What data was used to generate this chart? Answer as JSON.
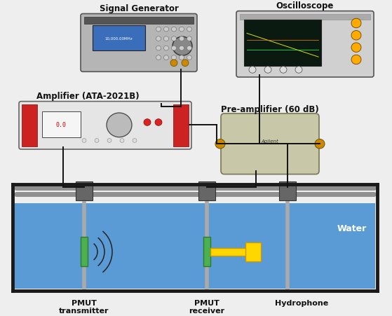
{
  "bg_color": "#f0f0f0",
  "water_color": "#5b9bd5",
  "tank_wall": "#1a1a1a",
  "rail_color": "#8a8a8a",
  "clamp_color": "#606060",
  "rod_color": "#aaaaaa",
  "wire_color": "#111111",
  "figure_bg": "#eeeeee",
  "labels": {
    "signal_gen": "Signal Generator",
    "oscilloscope": "Oscilloscope",
    "amplifier": "Amplifier (ATA-2021B)",
    "preamp": "Pre-amplifier (60 dB)",
    "pmut_tx": "PMUT\ntransmitter",
    "pmut_rx": "PMUT\nreceiver",
    "hydrophone": "Hydrophone",
    "water": "Water"
  },
  "label_fs": 8.5,
  "wire_lw": 1.4
}
